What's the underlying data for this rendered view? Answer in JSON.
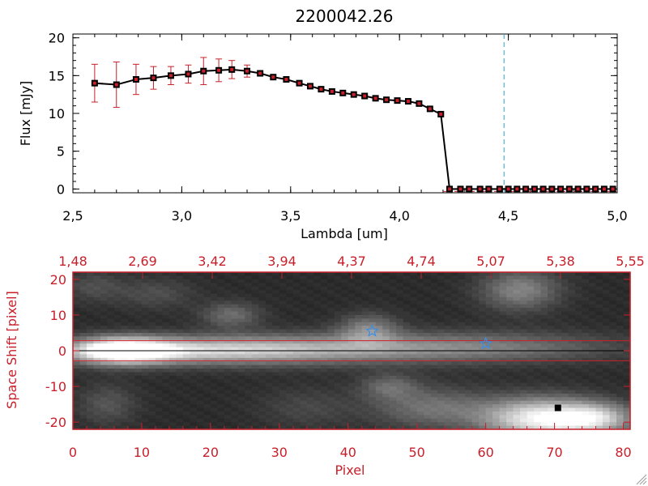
{
  "chart_data": [
    {
      "type": "line",
      "title": "2200042.26",
      "xlabel": "Lambda [um]",
      "ylabel": "Flux [mJy]",
      "xlim": [
        2.5,
        5.0
      ],
      "ylim": [
        -0.5,
        20.5
      ],
      "xticks": [
        "2.5",
        "3.0",
        "3.5",
        "4.0",
        "4.5",
        "5.0"
      ],
      "yticks": [
        "0",
        "5",
        "10",
        "15",
        "20"
      ],
      "vline_x": 4.48,
      "series": [
        {
          "x": [
            2.6,
            2.7,
            2.79,
            2.87,
            2.95,
            3.03,
            3.1,
            3.17,
            3.23,
            3.3,
            3.36,
            3.42,
            3.48,
            3.54,
            3.59,
            3.64,
            3.69,
            3.74,
            3.79,
            3.84,
            3.89,
            3.94,
            3.99,
            4.04,
            4.09,
            4.14,
            4.19,
            4.23,
            4.28,
            4.32,
            4.37,
            4.41,
            4.46,
            4.5,
            4.54,
            4.58,
            4.62,
            4.66,
            4.7,
            4.74,
            4.78,
            4.82,
            4.86,
            4.9,
            4.94,
            4.98
          ],
          "y": [
            14.0,
            13.8,
            14.5,
            14.7,
            15.0,
            15.2,
            15.6,
            15.7,
            15.8,
            15.6,
            15.3,
            14.8,
            14.5,
            14.0,
            13.6,
            13.2,
            12.9,
            12.7,
            12.5,
            12.3,
            12.0,
            11.8,
            11.7,
            11.6,
            11.3,
            10.6,
            9.9,
            0,
            0,
            0,
            0,
            0,
            0,
            0,
            0,
            0,
            0,
            0,
            0,
            0,
            0,
            0,
            0,
            0,
            0,
            0
          ],
          "err": [
            2.5,
            3.0,
            2.0,
            1.5,
            1.2,
            1.2,
            1.8,
            1.5,
            1.2,
            0.8,
            0,
            0,
            0,
            0,
            0,
            0,
            0,
            0,
            0,
            0,
            0,
            0,
            0,
            0,
            0,
            0,
            0,
            0,
            0,
            0,
            0,
            0,
            0,
            0,
            0,
            0,
            0,
            0,
            0,
            0,
            0,
            0,
            0,
            0,
            0,
            0
          ]
        }
      ]
    },
    {
      "type": "heatmap",
      "xlabel": "Pixel",
      "ylabel": "Space Shift [pixel]",
      "xlim": [
        0,
        81
      ],
      "ylim": [
        -22,
        22
      ],
      "xticks": [
        "0",
        "10",
        "20",
        "30",
        "40",
        "50",
        "60",
        "70",
        "80"
      ],
      "yticks": [
        "-20",
        "-10",
        "0",
        "10",
        "20"
      ],
      "top_ticks": [
        "1.48",
        "2.69",
        "3.42",
        "3.94",
        "4.37",
        "4.74",
        "5.07",
        "5.38",
        "5.55"
      ],
      "stars": [
        {
          "x": 43.5,
          "y": 5.5
        },
        {
          "x": 60,
          "y": 2
        }
      ],
      "marker": {
        "x": 70.5,
        "y": -16
      },
      "hlines": [
        2.8,
        -2.8
      ]
    }
  ]
}
